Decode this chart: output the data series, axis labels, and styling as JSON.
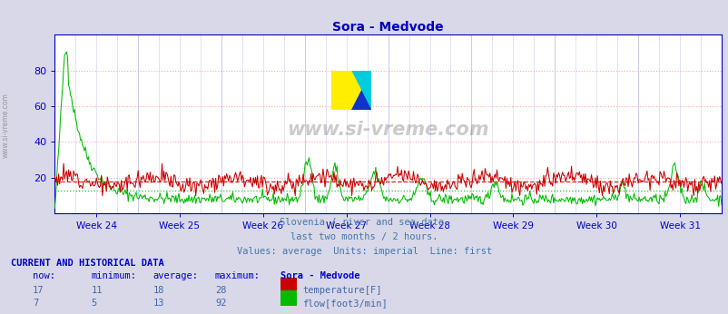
{
  "title": "Sora - Medvode",
  "bg_color": "#d8d8e8",
  "plot_bg_color": "#ffffff",
  "grid_color_h": "#ffaaaa",
  "grid_color_v": "#ccccee",
  "subtitle_lines": [
    "Slovenia / river and sea data.",
    "last two months / 2 hours.",
    "Values: average  Units: imperial  Line: first"
  ],
  "subtitle_color": "#4477aa",
  "title_color": "#0000bb",
  "watermark": "www.si-vreme.com",
  "xlabel_weeks": [
    "Week 24",
    "Week 25",
    "Week 26",
    "Week 27",
    "Week 28",
    "Week 29",
    "Week 30",
    "Week 31"
  ],
  "ylim": [
    0,
    100
  ],
  "yticks": [
    20,
    40,
    60,
    80
  ],
  "temp_color": "#cc0000",
  "flow_color": "#00bb00",
  "temp_avg": 18,
  "flow_avg": 13,
  "table_header_color": "#0000cc",
  "table_data_color": "#4466aa",
  "current_and_historical": "CURRENT AND HISTORICAL DATA",
  "col_headers": [
    "now:",
    "minimum:",
    "average:",
    "maximum:",
    "Sora - Medvode"
  ],
  "row_temp": [
    "17",
    "11",
    "18",
    "28",
    "temperature[F]"
  ],
  "row_flow": [
    "7",
    "5",
    "13",
    "92",
    "flow[foot3/min]"
  ],
  "axis_color": "#0000cc",
  "tick_color": "#0000cc",
  "n_weeks": 8,
  "temp_seed": 12,
  "flow_seed": 42
}
